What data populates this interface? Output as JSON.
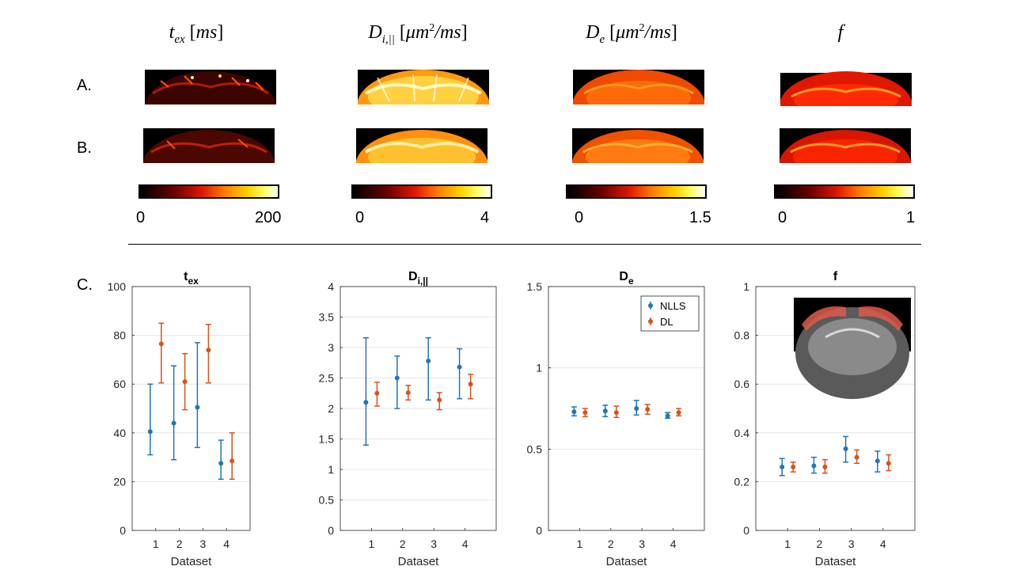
{
  "maps": {
    "columns": [
      {
        "title": "t_ex [ms]",
        "colorbar_min": "0",
        "colorbar_max": "200"
      },
      {
        "title": "D_i,|| [μm²/ms]",
        "colorbar_min": "0",
        "colorbar_max": "4"
      },
      {
        "title": "D_e [μm²/ms]",
        "colorbar_min": "0",
        "colorbar_max": "1.5"
      },
      {
        "title": "f",
        "colorbar_min": "0",
        "colorbar_max": "1"
      }
    ],
    "row_labels": [
      "A.",
      "B."
    ],
    "panel_c_label": "C.",
    "colormap": "hot"
  },
  "chart_data": [
    {
      "type": "scatter",
      "title": "t_ex",
      "xlabel": "Dataset",
      "ylabel": "",
      "categories": [
        "1",
        "2",
        "3",
        "4"
      ],
      "ylim": [
        0,
        100
      ],
      "yticks": [
        0,
        20,
        40,
        60,
        80,
        100
      ],
      "series": [
        {
          "name": "NLLS",
          "color": "#1f77b4",
          "values": [
            40.5,
            44,
            50.5,
            27.5
          ],
          "lower": [
            31,
            29,
            34,
            21
          ],
          "upper": [
            60,
            67.5,
            77,
            37
          ]
        },
        {
          "name": "DL",
          "color": "#d95319",
          "values": [
            76.5,
            61,
            74,
            28.5
          ],
          "lower": [
            60.5,
            49.5,
            60.5,
            21
          ],
          "upper": [
            85,
            72.5,
            84.5,
            40
          ]
        }
      ]
    },
    {
      "type": "scatter",
      "title": "D_i,||",
      "xlabel": "Dataset",
      "ylabel": "",
      "categories": [
        "1",
        "2",
        "3",
        "4"
      ],
      "ylim": [
        0,
        4
      ],
      "yticks": [
        0,
        0.5,
        1,
        1.5,
        2,
        2.5,
        3,
        3.5,
        4
      ],
      "series": [
        {
          "name": "NLLS",
          "color": "#1f77b4",
          "values": [
            2.1,
            2.5,
            2.78,
            2.68
          ],
          "lower": [
            1.4,
            2.0,
            2.14,
            2.16
          ],
          "upper": [
            3.16,
            2.86,
            3.16,
            2.98
          ]
        },
        {
          "name": "DL",
          "color": "#d95319",
          "values": [
            2.25,
            2.26,
            2.14,
            2.4
          ],
          "lower": [
            2.04,
            2.14,
            1.98,
            2.16
          ],
          "upper": [
            2.43,
            2.38,
            2.26,
            2.56
          ]
        }
      ]
    },
    {
      "type": "scatter",
      "title": "D_e",
      "xlabel": "Dataset",
      "ylabel": "",
      "categories": [
        "1",
        "2",
        "3",
        "4"
      ],
      "ylim": [
        0,
        1.5
      ],
      "yticks": [
        0,
        0.5,
        1,
        1.5
      ],
      "legend": {
        "entries": [
          "NLLS",
          "DL"
        ],
        "position": "top-right"
      },
      "series": [
        {
          "name": "NLLS",
          "color": "#1f77b4",
          "values": [
            0.73,
            0.735,
            0.75,
            0.705
          ],
          "lower": [
            0.705,
            0.7,
            0.71,
            0.69
          ],
          "upper": [
            0.76,
            0.77,
            0.8,
            0.725
          ]
        },
        {
          "name": "DL",
          "color": "#d95319",
          "values": [
            0.725,
            0.725,
            0.745,
            0.725
          ],
          "lower": [
            0.7,
            0.695,
            0.715,
            0.705
          ],
          "upper": [
            0.75,
            0.765,
            0.775,
            0.75
          ]
        }
      ]
    },
    {
      "type": "scatter",
      "title": "f",
      "xlabel": "Dataset",
      "ylabel": "",
      "categories": [
        "1",
        "2",
        "3",
        "4"
      ],
      "ylim": [
        0,
        1
      ],
      "yticks": [
        0,
        0.2,
        0.4,
        0.6,
        0.8,
        1
      ],
      "inset": "brain-roi-image",
      "series": [
        {
          "name": "NLLS",
          "color": "#1f77b4",
          "values": [
            0.26,
            0.265,
            0.335,
            0.285
          ],
          "lower": [
            0.225,
            0.235,
            0.28,
            0.24
          ],
          "upper": [
            0.295,
            0.3,
            0.385,
            0.325
          ]
        },
        {
          "name": "DL",
          "color": "#d95319",
          "values": [
            0.26,
            0.26,
            0.3,
            0.275
          ],
          "lower": [
            0.24,
            0.235,
            0.275,
            0.245
          ],
          "upper": [
            0.28,
            0.29,
            0.33,
            0.31
          ]
        }
      ]
    }
  ]
}
